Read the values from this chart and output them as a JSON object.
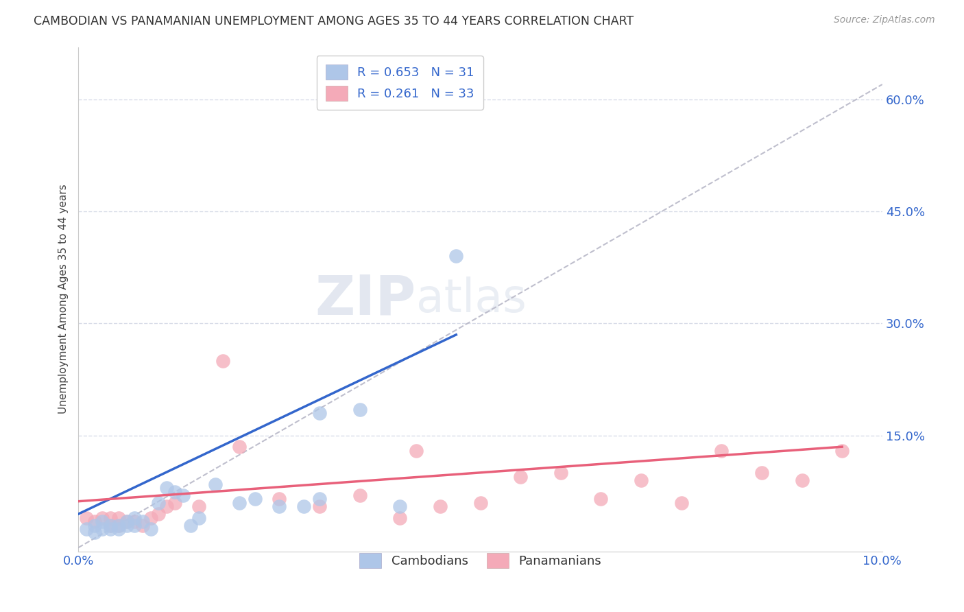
{
  "title": "CAMBODIAN VS PANAMANIAN UNEMPLOYMENT AMONG AGES 35 TO 44 YEARS CORRELATION CHART",
  "source": "Source: ZipAtlas.com",
  "ylabel": "Unemployment Among Ages 35 to 44 years",
  "xlim": [
    0.0,
    0.1
  ],
  "ylim": [
    -0.005,
    0.67
  ],
  "xticks": [
    0.0,
    0.025,
    0.05,
    0.075,
    0.1
  ],
  "xtick_labels": [
    "0.0%",
    "",
    "",
    "",
    "10.0%"
  ],
  "ytick_positions": [
    0.0,
    0.15,
    0.3,
    0.45,
    0.6
  ],
  "ytick_labels": [
    "",
    "15.0%",
    "30.0%",
    "45.0%",
    "60.0%"
  ],
  "cambodian_color": "#aec6e8",
  "panamanian_color": "#f4aab8",
  "cambodian_line_color": "#3366cc",
  "panamanian_line_color": "#e8607a",
  "diagonal_color": "#b8b8c8",
  "grid_color": "#d8dce8",
  "watermark_zip": "ZIP",
  "watermark_atlas": "atlas",
  "R_cambodian": 0.653,
  "N_cambodian": 31,
  "R_panamanian": 0.261,
  "N_panamanian": 33,
  "cambodian_x": [
    0.001,
    0.002,
    0.002,
    0.003,
    0.003,
    0.004,
    0.004,
    0.005,
    0.005,
    0.006,
    0.006,
    0.007,
    0.007,
    0.008,
    0.009,
    0.01,
    0.011,
    0.012,
    0.013,
    0.014,
    0.015,
    0.017,
    0.02,
    0.022,
    0.025,
    0.028,
    0.03,
    0.03,
    0.035,
    0.04,
    0.047
  ],
  "cambodian_y": [
    0.025,
    0.02,
    0.03,
    0.025,
    0.035,
    0.025,
    0.03,
    0.025,
    0.03,
    0.03,
    0.035,
    0.03,
    0.04,
    0.035,
    0.025,
    0.06,
    0.08,
    0.075,
    0.07,
    0.03,
    0.04,
    0.085,
    0.06,
    0.065,
    0.055,
    0.055,
    0.18,
    0.065,
    0.185,
    0.055,
    0.39
  ],
  "panamanian_x": [
    0.001,
    0.002,
    0.003,
    0.004,
    0.004,
    0.005,
    0.005,
    0.006,
    0.007,
    0.008,
    0.009,
    0.01,
    0.011,
    0.012,
    0.015,
    0.018,
    0.02,
    0.025,
    0.03,
    0.035,
    0.04,
    0.042,
    0.045,
    0.05,
    0.055,
    0.06,
    0.065,
    0.07,
    0.075,
    0.08,
    0.085,
    0.09,
    0.095
  ],
  "panamanian_y": [
    0.04,
    0.035,
    0.04,
    0.03,
    0.04,
    0.03,
    0.04,
    0.035,
    0.035,
    0.03,
    0.04,
    0.045,
    0.055,
    0.06,
    0.055,
    0.25,
    0.135,
    0.065,
    0.055,
    0.07,
    0.04,
    0.13,
    0.055,
    0.06,
    0.095,
    0.1,
    0.065,
    0.09,
    0.06,
    0.13,
    0.1,
    0.09,
    0.13
  ],
  "camb_trend_x0": 0.0,
  "camb_trend_y0": 0.045,
  "camb_trend_x1": 0.047,
  "camb_trend_y1": 0.285,
  "pan_trend_x0": 0.0,
  "pan_trend_y0": 0.062,
  "pan_trend_x1": 0.095,
  "pan_trend_y1": 0.135
}
